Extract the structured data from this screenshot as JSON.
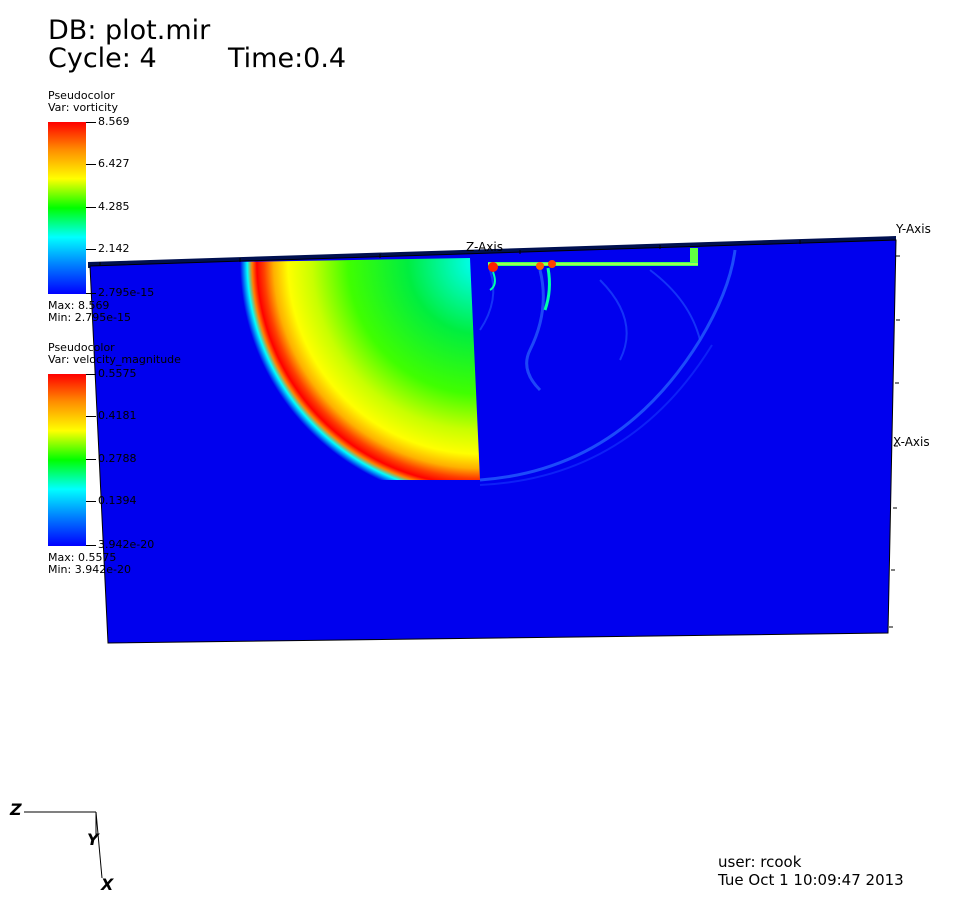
{
  "header": {
    "db": "DB: plot.mir",
    "cycle": "Cycle: 4",
    "time": "Time:0.4"
  },
  "legends": [
    {
      "plot_type": "Pseudocolor",
      "var": "Var: vorticity",
      "ticks": [
        "8.569",
        "6.427",
        "4.285",
        "2.142",
        "2.795e-15"
      ],
      "max_label": "Max:  8.569",
      "min_label": "Min:  2.795e-15"
    },
    {
      "plot_type": "Pseudocolor",
      "var": "Var: velocity_magnitude",
      "ticks": [
        "0.5575",
        "0.4181",
        "0.2788",
        "0.1394",
        "3.942e-20"
      ],
      "max_label": "Max:  0.5575",
      "min_label": "Min:  3.942e-20"
    }
  ],
  "axes": {
    "z_axis_title": "Z-Axis",
    "y_axis_title": "Y-Axis",
    "x_axis_title": "X-Axis"
  },
  "triad": {
    "z": "Z",
    "y": "Y",
    "x": "X"
  },
  "footer": {
    "user": "user: rcook",
    "timestamp": "Tue Oct  1 10:09:47 2013"
  },
  "colors": {
    "background": "#ffffff",
    "field_base": "#0000ee",
    "colormap": [
      "#0000ff",
      "#00ffff",
      "#00ff00",
      "#ffff00",
      "#ff0000"
    ]
  }
}
